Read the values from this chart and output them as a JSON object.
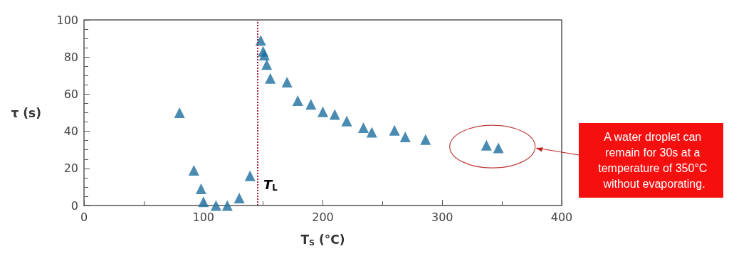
{
  "chart_data": {
    "type": "scatter",
    "xlabel": "T$_{S}$ (°C)",
    "ylabel": "τ (s)",
    "x": [
      80,
      92,
      98,
      100,
      110.5,
      120,
      130,
      139,
      148,
      150,
      151,
      153,
      156,
      170,
      179,
      190,
      200,
      210,
      220,
      234,
      241,
      260,
      269,
      286,
      337,
      347
    ],
    "series": [
      {
        "color": "#1b6e9e",
        "values": [
          50,
          19,
          9,
          2,
          0,
          0,
          4,
          16,
          89,
          83,
          81,
          76,
          68.5,
          66.5,
          56.5,
          54.5,
          50.5,
          49,
          45.5,
          42,
          39.5,
          40.5,
          37,
          35.5,
          32.5,
          31
        ]
      }
    ],
    "xlim": [
      0,
      400
    ],
    "xticks": [
      0,
      100,
      200,
      300,
      400
    ],
    "ylim": [
      0,
      100
    ],
    "yticks": [
      0,
      20,
      40,
      60,
      80,
      100
    ],
    "marker": "triangle",
    "grid": false,
    "ref_lines": [
      {
        "axis": "x",
        "value": 145.5,
        "label": "T$_{L}$",
        "color": "#a3203a",
        "line_style": "dotted"
      }
    ],
    "annotations": [
      "A water droplet can remain for 30s at a temperature of 350°C without evaporating."
    ]
  }
}
